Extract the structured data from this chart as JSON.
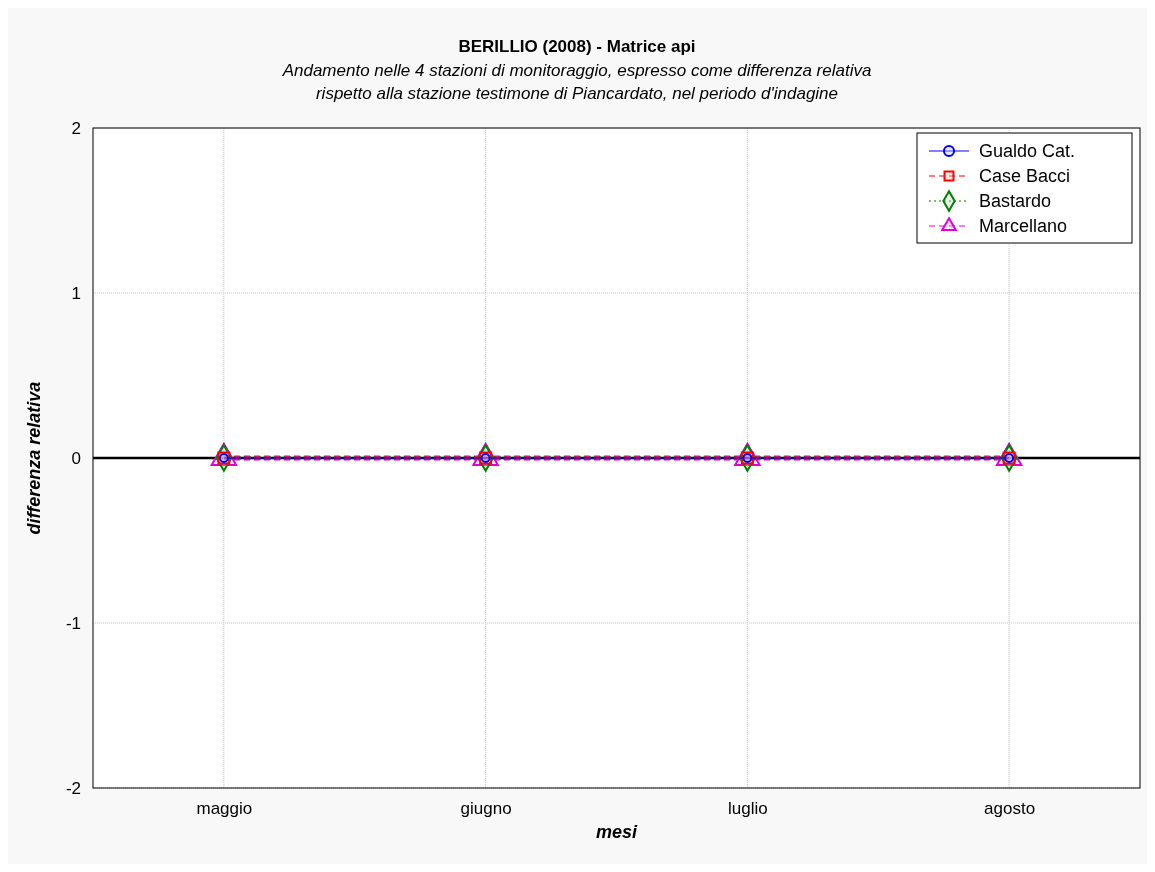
{
  "chart_data": {
    "type": "line",
    "title": "BERILLIO (2008) - Matrice api",
    "subtitle": "Andamento nelle 4 stazioni di monitoraggio, espresso come differenza relativa\nrispetto alla stazione testimone di Piancardato, nel periodo d'indagine",
    "xlabel": "mesi",
    "ylabel": "differenza relativa",
    "categories": [
      "maggio",
      "giugno",
      "luglio",
      "agosto"
    ],
    "series": [
      {
        "name": "Gualdo Cat.",
        "color": "#0000ff",
        "marker": "circle",
        "line_style": "solid",
        "values": [
          0,
          0,
          0,
          0
        ]
      },
      {
        "name": "Case Bacci",
        "color": "#ff0000",
        "marker": "square",
        "line_style": "dashed",
        "values": [
          0,
          0,
          0,
          0
        ]
      },
      {
        "name": "Bastardo",
        "color": "#008000",
        "marker": "diamond",
        "line_style": "dotted",
        "values": [
          0,
          0,
          0,
          0
        ]
      },
      {
        "name": "Marcellano",
        "color": "#e000e0",
        "marker": "triangle",
        "line_style": "dashed",
        "values": [
          0,
          0,
          0,
          0
        ]
      }
    ],
    "ylim": [
      -2,
      2
    ],
    "yticks": [
      -2,
      -1,
      0,
      1,
      2
    ],
    "grid": true,
    "legend": "top right",
    "ref_lines": [
      {
        "axis": "y",
        "value": 0,
        "color": "#000000"
      }
    ]
  }
}
